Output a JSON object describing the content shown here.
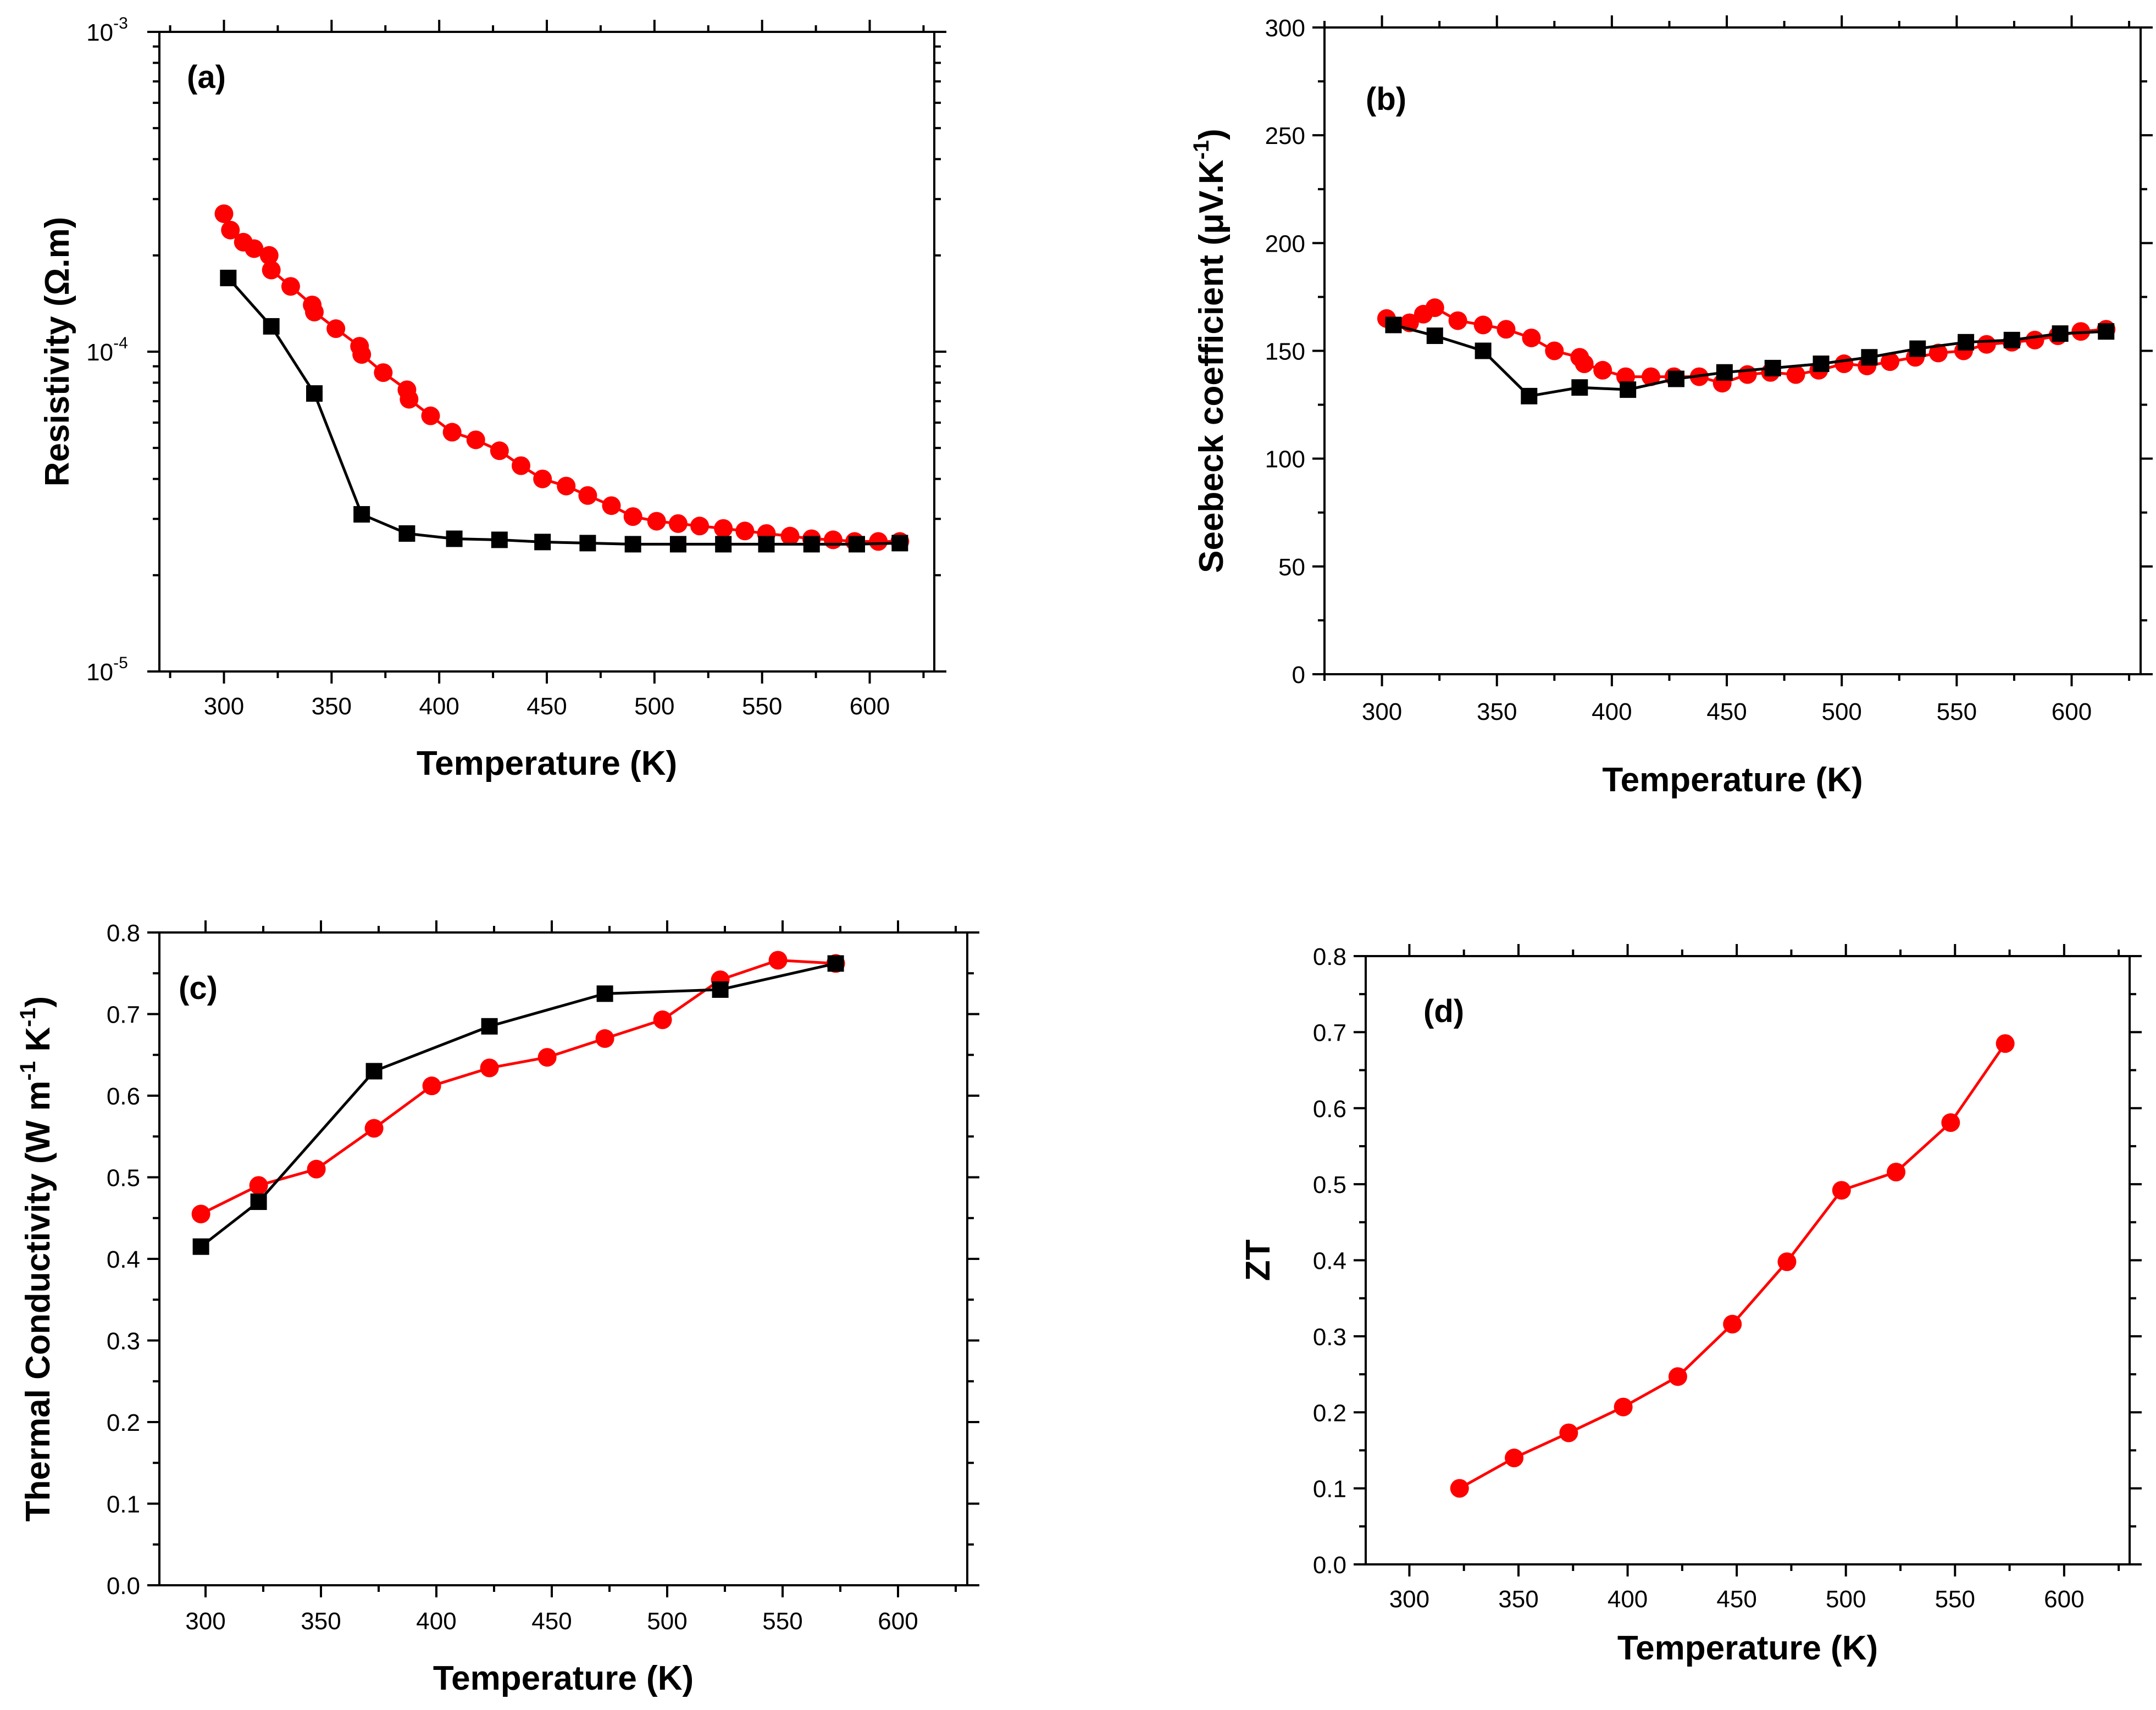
{
  "colors": {
    "series_black": "#000000",
    "series_red": "#ff0000"
  },
  "chart_data": [
    {
      "id": "a",
      "type": "line",
      "panel_label": "(a)",
      "xlabel": "Temperature (K)",
      "ylabel": "Resistivity (Ω.m)",
      "yscale": "log",
      "xlim": [
        270,
        630
      ],
      "ylim": [
        1e-05,
        0.001
      ],
      "xticks": [
        300,
        350,
        400,
        450,
        500,
        550,
        600
      ],
      "xtick_labels": [
        "300",
        "350",
        "400",
        "450",
        "500",
        "550",
        "600"
      ],
      "yticks": [
        1e-05,
        0.0001,
        0.001
      ],
      "ytick_labels": [
        {
          "base": "10",
          "exp": "-5"
        },
        {
          "base": "10",
          "exp": "-4"
        },
        {
          "base": "10",
          "exp": "-3"
        }
      ],
      "series": [
        {
          "name": "black-squares",
          "marker": "square",
          "color": "#000000",
          "x": [
            302,
            322,
            342,
            364,
            385,
            407,
            428,
            448,
            469,
            490,
            511,
            532,
            552,
            573,
            594,
            614
          ],
          "y": [
            0.00017,
            0.00012,
            7.4e-05,
            3.1e-05,
            2.7e-05,
            2.6e-05,
            2.58e-05,
            2.54e-05,
            2.52e-05,
            2.5e-05,
            2.5e-05,
            2.5e-05,
            2.5e-05,
            2.5e-05,
            2.5e-05,
            2.52e-05
          ]
        },
        {
          "name": "red-circles",
          "marker": "circle",
          "color": "#ff0000",
          "x": [
            300,
            303,
            309,
            314,
            321,
            322,
            331,
            341,
            342,
            352,
            363,
            364,
            374,
            385,
            386,
            396,
            406,
            417,
            428,
            438,
            448,
            459,
            469,
            480,
            490,
            501,
            511,
            521,
            532,
            542,
            552,
            563,
            573,
            583,
            593,
            604,
            614
          ],
          "y": [
            0.00027,
            0.00024,
            0.00022,
            0.00021,
            0.0002,
            0.00018,
            0.00016,
            0.00014,
            0.000133,
            0.000118,
            0.000104,
            9.8e-05,
            8.6e-05,
            7.6e-05,
            7.1e-05,
            6.3e-05,
            5.6e-05,
            5.3e-05,
            4.9e-05,
            4.4e-05,
            4e-05,
            3.8e-05,
            3.55e-05,
            3.3e-05,
            3.05e-05,
            2.95e-05,
            2.9e-05,
            2.85e-05,
            2.8e-05,
            2.75e-05,
            2.7e-05,
            2.65e-05,
            2.6e-05,
            2.58e-05,
            2.55e-05,
            2.55e-05,
            2.55e-05
          ]
        }
      ]
    },
    {
      "id": "b",
      "type": "line",
      "panel_label": "(b)",
      "xlabel": "Temperature (K)",
      "ylabel": {
        "main": "Seebeck coefficient (μV.K",
        "sup": "-1",
        "tail": ")"
      },
      "xlim": [
        275,
        630
      ],
      "ylim": [
        0,
        300
      ],
      "xticks": [
        300,
        350,
        400,
        450,
        500,
        550,
        600
      ],
      "xtick_labels": [
        "300",
        "350",
        "400",
        "450",
        "500",
        "550",
        "600"
      ],
      "yticks": [
        0,
        50,
        100,
        150,
        200,
        250,
        300
      ],
      "ytick_labels": [
        "0",
        "50",
        "100",
        "150",
        "200",
        "250",
        "300"
      ],
      "series": [
        {
          "name": "black-squares",
          "marker": "square",
          "color": "#000000",
          "x": [
            305,
            323,
            344,
            364,
            386,
            407,
            428,
            449,
            470,
            491,
            512,
            533,
            554,
            574,
            595,
            615
          ],
          "y": [
            162,
            157,
            150,
            129,
            133,
            132,
            137,
            140,
            142,
            144,
            147,
            151,
            154,
            155,
            158,
            159
          ]
        },
        {
          "name": "red-circles",
          "marker": "circle",
          "color": "#ff0000",
          "x": [
            302,
            312,
            318,
            323,
            333,
            344,
            354,
            365,
            375,
            386,
            388,
            396,
            406,
            417,
            427,
            438,
            448,
            459,
            469,
            480,
            490,
            501,
            511,
            521,
            532,
            542,
            553,
            563,
            574,
            584,
            594,
            604,
            615
          ],
          "y": [
            165,
            163,
            167,
            170,
            164,
            162,
            160,
            156,
            150,
            147,
            144,
            141,
            138,
            138,
            138,
            138,
            135,
            139,
            140,
            139,
            141,
            144,
            143,
            145,
            147,
            149,
            150,
            153,
            154,
            155,
            157,
            159,
            160
          ]
        }
      ]
    },
    {
      "id": "c",
      "type": "line",
      "panel_label": "(c)",
      "xlabel": "Temperature (K)",
      "ylabel": {
        "main": "Thermal Conductivity (W m",
        "sup1": "-1",
        "mid": " K",
        "sup2": "-1",
        "tail": ")"
      },
      "xlim": [
        280,
        630
      ],
      "ylim": [
        0,
        0.8
      ],
      "xticks": [
        300,
        350,
        400,
        450,
        500,
        550,
        600
      ],
      "xtick_labels": [
        "300",
        "350",
        "400",
        "450",
        "500",
        "550",
        "600"
      ],
      "yticks": [
        0,
        0.1,
        0.2,
        0.3,
        0.4,
        0.5,
        0.6,
        0.7,
        0.8
      ],
      "ytick_labels": [
        "0.0",
        "0.1",
        "0.2",
        "0.3",
        "0.4",
        "0.5",
        "0.6",
        "0.7",
        "0.8"
      ],
      "series": [
        {
          "name": "black-squares",
          "marker": "square",
          "color": "#000000",
          "x": [
            298,
            323,
            373,
            423,
            473,
            523,
            573
          ],
          "y": [
            0.415,
            0.47,
            0.63,
            0.685,
            0.725,
            0.73,
            0.762
          ]
        },
        {
          "name": "red-circles",
          "marker": "circle",
          "color": "#ff0000",
          "x": [
            298,
            323,
            348,
            373,
            398,
            423,
            448,
            473,
            498,
            523,
            548,
            573
          ],
          "y": [
            0.455,
            0.49,
            0.51,
            0.56,
            0.612,
            0.634,
            0.647,
            0.67,
            0.693,
            0.742,
            0.766,
            0.762
          ]
        }
      ]
    },
    {
      "id": "d",
      "type": "line",
      "panel_label": "(d)",
      "xlabel": "Temperature (K)",
      "ylabel": "ZT",
      "xlim": [
        280,
        630
      ],
      "ylim": [
        0,
        0.8
      ],
      "xticks": [
        300,
        350,
        400,
        450,
        500,
        550,
        600
      ],
      "xtick_labels": [
        "300",
        "350",
        "400",
        "450",
        "500",
        "550",
        "600"
      ],
      "yticks": [
        0,
        0.1,
        0.2,
        0.3,
        0.4,
        0.5,
        0.6,
        0.7,
        0.8
      ],
      "ytick_labels": [
        "0.0",
        "0.1",
        "0.2",
        "0.3",
        "0.4",
        "0.5",
        "0.6",
        "0.7",
        "0.8"
      ],
      "series": [
        {
          "name": "red-circles",
          "marker": "circle",
          "color": "#ff0000",
          "x": [
            323,
            348,
            373,
            398,
            423,
            448,
            473,
            498,
            523,
            548,
            573
          ],
          "y": [
            0.1,
            0.14,
            0.173,
            0.207,
            0.247,
            0.316,
            0.398,
            0.492,
            0.516,
            0.581,
            0.685
          ]
        }
      ]
    }
  ]
}
